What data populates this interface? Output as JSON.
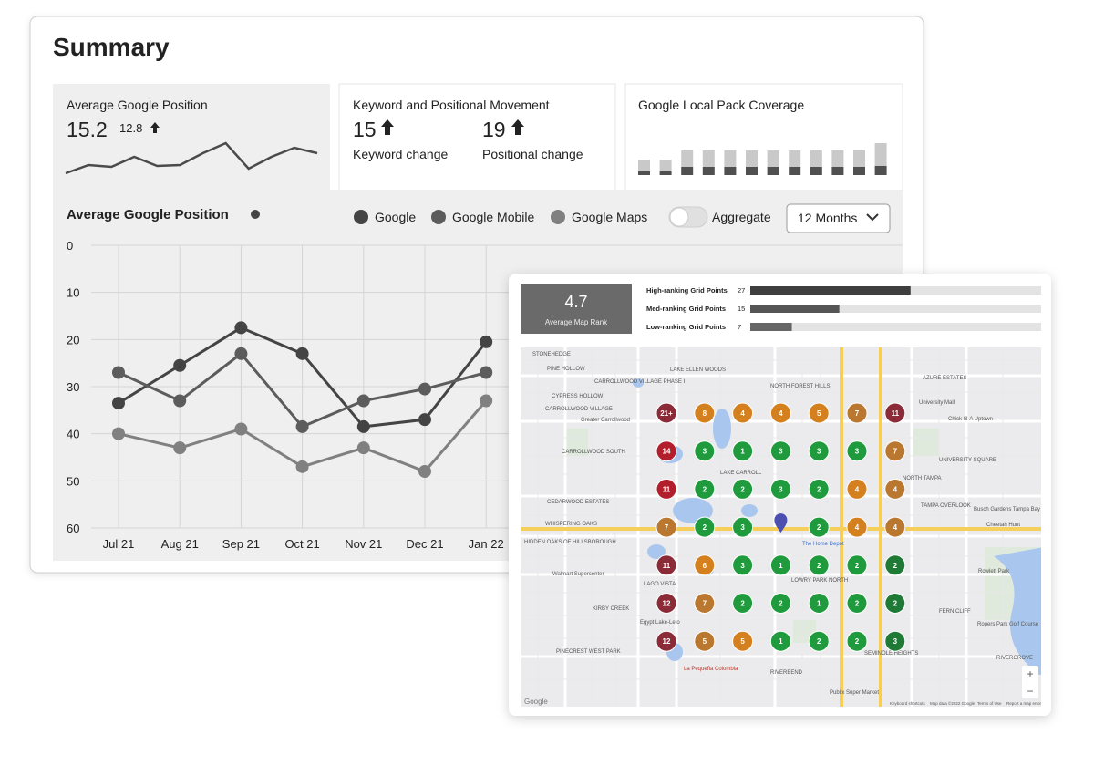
{
  "summary": {
    "title": "Summary",
    "avg_position_card": {
      "title": "Average Google Position",
      "value": 15.2,
      "previous": 12.8,
      "sparkline": [
        10,
        19,
        17,
        28,
        18,
        19,
        32,
        43,
        15,
        28,
        38,
        32
      ],
      "color": "#4a4a4a"
    },
    "movement_card": {
      "title": "Keyword and Positional Movement",
      "keyword_value": 15,
      "keyword_label": "Keyword change",
      "positional_value": 19,
      "positional_label": "Positional change"
    },
    "coverage_card": {
      "title": "Google Local Pack Coverage",
      "covered": [
        4,
        4,
        9,
        9,
        9,
        9,
        9,
        9,
        9,
        9,
        9,
        10
      ],
      "uncovered": [
        13,
        13,
        18,
        18,
        18,
        18,
        18,
        18,
        18,
        18,
        18,
        25
      ],
      "colors": {
        "covered": "#505050",
        "uncovered": "#c9c9c9"
      }
    }
  },
  "chart_data": {
    "type": "line",
    "title": "Average Google Position",
    "categories": [
      "Jul 21",
      "Aug 21",
      "Sep 21",
      "Oct 21",
      "Nov 21",
      "Dec 21",
      "Jan 22"
    ],
    "series": [
      {
        "name": "Google",
        "color": "#444444",
        "values": [
          33.5,
          25.5,
          17.5,
          23,
          38.5,
          37,
          20.5
        ]
      },
      {
        "name": "Google Mobile",
        "color": "#5c5c5c",
        "values": [
          27,
          33,
          23,
          38.5,
          33,
          30.5,
          27
        ]
      },
      {
        "name": "Google Maps",
        "color": "#808080",
        "values": [
          40,
          43,
          39,
          47,
          43,
          48,
          33
        ]
      }
    ],
    "ylim": [
      0,
      60
    ],
    "yticks": [
      0,
      10,
      20,
      30,
      40,
      50,
      60
    ],
    "y_inverted": true,
    "grid": true,
    "aggregate_label": "Aggregate",
    "aggregate_on": false,
    "period": "12 Months"
  },
  "map_card": {
    "average_rank": 4.7,
    "average_rank_label": "Average Map Rank",
    "grid_points": {
      "labels": [
        "High-ranking Grid Points",
        "Med-ranking Grid Points",
        "Low-ranking Grid Points"
      ],
      "values": [
        27,
        15,
        7
      ],
      "xlim": [
        0,
        49
      ],
      "colors": [
        "#3e3e3e",
        "#555555",
        "#666666"
      ]
    },
    "ranks": [
      [
        "21+",
        8,
        4,
        4,
        5,
        7,
        11
      ],
      [
        14,
        3,
        1,
        3,
        3,
        3,
        7
      ],
      [
        11,
        2,
        2,
        3,
        2,
        4,
        4
      ],
      [
        7,
        2,
        3,
        null,
        2,
        4,
        4
      ],
      [
        11,
        6,
        3,
        1,
        2,
        2,
        2
      ],
      [
        12,
        7,
        2,
        2,
        1,
        2,
        2
      ],
      [
        12,
        5,
        5,
        1,
        2,
        2,
        3
      ]
    ],
    "rank_colors": [
      [
        "#8a2b37",
        "#d5801f",
        "#d5801f",
        "#d5801f",
        "#d5801f",
        "#b9772f",
        "#8a2b37"
      ],
      [
        "#b31e2c",
        "#1f9a3c",
        "#1f9a3c",
        "#1f9a3c",
        "#1f9a3c",
        "#1f9a3c",
        "#b9772f"
      ],
      [
        "#b31e2c",
        "#1f9a3c",
        "#1f9a3c",
        "#1f9a3c",
        "#1f9a3c",
        "#d5801f",
        "#b9772f"
      ],
      [
        "#b9772f",
        "#1f9a3c",
        "#1f9a3c",
        "#4a4fb0",
        "#1f9a3c",
        "#d5801f",
        "#b9772f"
      ],
      [
        "#8a2b37",
        "#d5801f",
        "#1f9a3c",
        "#1f9a3c",
        "#1f9a3c",
        "#1f9a3c",
        "#1e7a35"
      ],
      [
        "#8a2b37",
        "#b9772f",
        "#1f9a3c",
        "#1f9a3c",
        "#1f9a3c",
        "#1f9a3c",
        "#1e7a35"
      ],
      [
        "#8a2b37",
        "#b9772f",
        "#d5801f",
        "#1f9a3c",
        "#1f9a3c",
        "#1f9a3c",
        "#1e7a35"
      ]
    ],
    "map_labels": [
      "STONEHEDGE",
      "PINE HOLLOW",
      "CARROLLWOOD VILLAGE PHASE I",
      "LAKE ELLEN WOODS",
      "NORTH FOREST HILLS",
      "AZURE ESTATES",
      "CYPRESS HOLLOW",
      "CARROLLWOOD VILLAGE",
      "Greater Carrollwood",
      "Chick-fil-A Uptown",
      "University Mall",
      "CARROLLWOOD SOUTH",
      "UNIVERSITY SQUARE",
      "LAKE CARROLL",
      "NORTH TAMPA",
      "CEDARWOOD ESTATES",
      "TAMPA OVERLOOK",
      "Busch Gardens Tampa Bay",
      "WHISPERING OAKS",
      "Cheetah Hunt",
      "HIDDEN OAKS OF HILLSBOROUGH",
      "The Home Depot",
      "LOWRY PARK NORTH",
      "Rowlett Park",
      "LAGO VISTA",
      "Walmart Supercenter",
      "KIRBY CREEK",
      "Egypt Lake-Leto",
      "FERN CLIFF",
      "Rogers Park Golf Course",
      "PINECREST WEST PARK",
      "RIVERGROVE",
      "RIVERBEND",
      "La Pequeña Colombia",
      "SEMINOLE HEIGHTS",
      "Publix Super Market",
      "Google",
      "Keyboard shortcuts",
      "Map data ©2022 Google",
      "Terms of Use",
      "Report a map error"
    ],
    "zoom_in": "+",
    "zoom_out": "−"
  }
}
